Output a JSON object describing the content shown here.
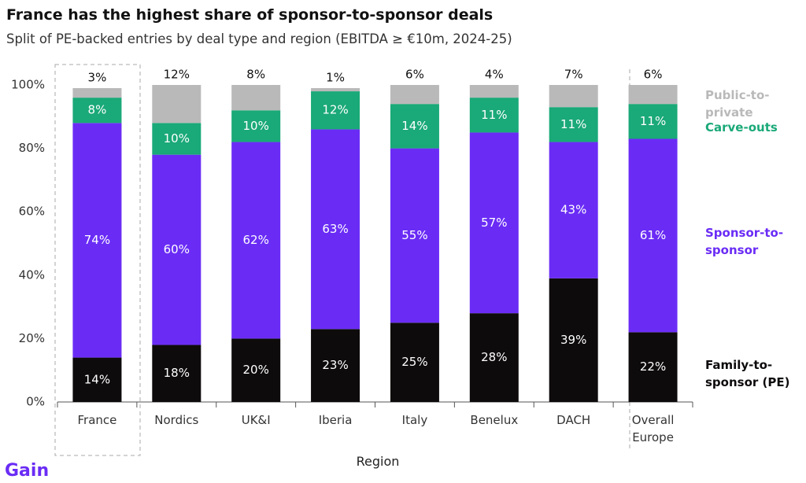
{
  "chart_data": {
    "type": "stacked_bar",
    "title": "France has the highest share of sponsor-to-sponsor deals",
    "subtitle": "Split of PE-backed entries by deal type and region (EBITDA ≥ €10m, 2024-25)",
    "x_label": "Region",
    "brand": "Gain",
    "categories": [
      "France",
      "Nordics",
      "UK&I",
      "Iberia",
      "Italy",
      "Benelux",
      "DACH",
      "Overall Europe"
    ],
    "ylim": [
      0,
      100
    ],
    "yticks": [
      {
        "value": 0,
        "label": "0%"
      },
      {
        "value": 20,
        "label": "20%"
      },
      {
        "value": 40,
        "label": "40%"
      },
      {
        "value": 60,
        "label": "60%"
      },
      {
        "value": 80,
        "label": "80%"
      },
      {
        "value": 100,
        "label": "100%"
      }
    ],
    "grid": false,
    "legend": "right",
    "series": [
      {
        "name": "Family-to-sponsor (PE)",
        "color": "#0e0b0c",
        "label_color": "#ffffff",
        "values": [
          14,
          18,
          20,
          23,
          25,
          28,
          39,
          22
        ],
        "value_labels": [
          "14%",
          "18%",
          "20%",
          "23%",
          "25%",
          "28%",
          "39%",
          "22%"
        ]
      },
      {
        "name": "Sponsor-to-sponsor",
        "color": "#6a2cf5",
        "label_color": "#ffffff",
        "values": [
          74,
          60,
          62,
          63,
          55,
          57,
          43,
          61
        ],
        "value_labels": [
          "74%",
          "60%",
          "62%",
          "63%",
          "55%",
          "57%",
          "43%",
          "61%"
        ]
      },
      {
        "name": "Carve-outs",
        "color": "#1aa978",
        "label_color": "#ffffff",
        "values": [
          8,
          10,
          10,
          12,
          14,
          11,
          11,
          11
        ],
        "value_labels": [
          "8%",
          "10%",
          "10%",
          "12%",
          "14%",
          "11%",
          "11%",
          "11%"
        ]
      },
      {
        "name": "Public-to-private",
        "color": "#b9b9b9",
        "label_color": "#111111",
        "values": [
          3,
          12,
          8,
          1,
          6,
          4,
          7,
          6
        ],
        "value_labels": [
          "3%",
          "12%",
          "8%",
          "1%",
          "6%",
          "4%",
          "7%",
          "6%"
        ]
      }
    ]
  }
}
